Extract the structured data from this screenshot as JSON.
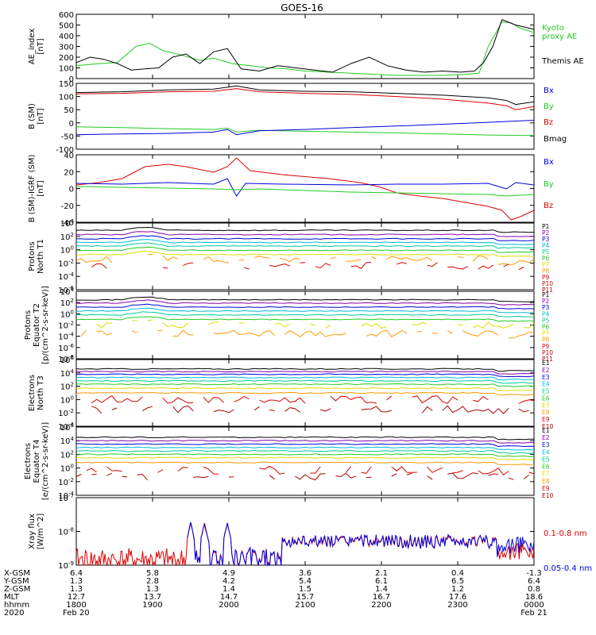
{
  "title": "GOES-16",
  "colors": {
    "black": "#000000",
    "red": "#dd0000",
    "green": "#22cc22",
    "blue": "#0000dd",
    "purple": "#8800aa",
    "cyan": "#00bbdd",
    "teal": "#00cc99",
    "yellow": "#dddd00",
    "orange": "#ff9900",
    "magenta": "#cc00cc",
    "navy": "#0000aa",
    "ltgreen": "#55dd55",
    "olive": "#aaaa00"
  },
  "chart_data": [
    {
      "type": "line",
      "id": "ae",
      "ylabel": [
        "AE_index",
        "[nT]"
      ],
      "ylim": [
        0,
        600
      ],
      "yticks": [
        "600",
        "500",
        "400",
        "300",
        "200",
        "100",
        "0"
      ],
      "legend": [
        {
          "text": "Kyoto",
          "color": "#22cc22"
        },
        {
          "text": "proxy AE",
          "color": "#22cc22"
        },
        {
          "text": "Themis AE",
          "color": "#000000"
        }
      ],
      "series": [
        {
          "name": "Kyoto proxy AE",
          "color": "#22cc22",
          "x": [
            0,
            0.05,
            0.09,
            0.13,
            0.16,
            0.19,
            0.23,
            0.27,
            0.3,
            0.34,
            0.38,
            0.42,
            0.46,
            0.5,
            0.55,
            0.6,
            0.65,
            0.7,
            0.75,
            0.8,
            0.85,
            0.88,
            0.9,
            0.93,
            0.95,
            0.97,
            1.0
          ],
          "y": [
            120,
            140,
            150,
            300,
            330,
            260,
            220,
            170,
            190,
            140,
            120,
            100,
            90,
            70,
            60,
            50,
            40,
            30,
            30,
            30,
            40,
            50,
            300,
            530,
            520,
            470,
            430
          ]
        },
        {
          "name": "Themis AE",
          "color": "#000000",
          "x": [
            0,
            0.03,
            0.06,
            0.09,
            0.12,
            0.15,
            0.18,
            0.21,
            0.24,
            0.27,
            0.3,
            0.33,
            0.36,
            0.4,
            0.44,
            0.48,
            0.52,
            0.56,
            0.6,
            0.64,
            0.68,
            0.72,
            0.76,
            0.8,
            0.84,
            0.87,
            0.89,
            0.91,
            0.93,
            0.96,
            1.0
          ],
          "y": [
            150,
            200,
            180,
            140,
            80,
            90,
            100,
            200,
            230,
            140,
            250,
            280,
            90,
            70,
            120,
            100,
            80,
            60,
            140,
            200,
            120,
            80,
            60,
            70,
            60,
            70,
            150,
            300,
            550,
            500,
            460
          ]
        }
      ]
    },
    {
      "type": "line",
      "id": "bsm",
      "ylabel": [
        "B (SM)",
        "[nT]"
      ],
      "ylim": [
        -100,
        150
      ],
      "yticks": [
        "150",
        "100",
        "50",
        "0",
        "-50",
        "-100"
      ],
      "legend": [
        {
          "text": "Bx",
          "color": "#0000dd"
        },
        {
          "text": "By",
          "color": "#22cc22"
        },
        {
          "text": "Bz",
          "color": "#dd0000"
        },
        {
          "text": "Bmag",
          "color": "#000000"
        }
      ],
      "series": [
        {
          "name": "Bmag",
          "color": "#000000",
          "x": [
            0,
            0.1,
            0.2,
            0.3,
            0.35,
            0.4,
            0.5,
            0.6,
            0.7,
            0.8,
            0.9,
            0.94,
            0.96,
            1.0
          ],
          "y": [
            115,
            118,
            125,
            128,
            140,
            125,
            120,
            118,
            112,
            105,
            95,
            85,
            70,
            80
          ]
        },
        {
          "name": "Bz",
          "color": "#dd0000",
          "x": [
            0,
            0.1,
            0.2,
            0.3,
            0.35,
            0.4,
            0.5,
            0.6,
            0.7,
            0.8,
            0.9,
            0.94,
            0.96,
            1.0
          ],
          "y": [
            110,
            112,
            118,
            120,
            130,
            118,
            112,
            108,
            100,
            90,
            75,
            65,
            50,
            62
          ]
        },
        {
          "name": "By",
          "color": "#22cc22",
          "x": [
            0,
            0.1,
            0.2,
            0.3,
            0.33,
            0.35,
            0.4,
            0.5,
            0.6,
            0.7,
            0.8,
            0.9,
            1.0
          ],
          "y": [
            -15,
            -18,
            -22,
            -25,
            -20,
            -35,
            -28,
            -32,
            -35,
            -38,
            -42,
            -46,
            -48
          ]
        },
        {
          "name": "Bx",
          "color": "#0000dd",
          "x": [
            0,
            0.1,
            0.2,
            0.3,
            0.33,
            0.35,
            0.4,
            0.5,
            0.6,
            0.7,
            0.8,
            0.9,
            1.0
          ],
          "y": [
            -45,
            -42,
            -40,
            -35,
            -25,
            -45,
            -30,
            -25,
            -18,
            -12,
            -5,
            2,
            10
          ]
        }
      ]
    },
    {
      "type": "line",
      "id": "bigrf",
      "ylabel": [
        "B (SM)-IGRF (SM)",
        "[nT]"
      ],
      "ylim": [
        -45,
        40
      ],
      "yticks": [
        "40",
        "20",
        "0",
        "-20",
        "-40"
      ],
      "legend": [
        {
          "text": "Bx",
          "color": "#0000dd"
        },
        {
          "text": "By",
          "color": "#22cc22"
        },
        {
          "text": "Bz",
          "color": "#dd0000"
        }
      ],
      "series": [
        {
          "name": "Bz",
          "color": "#dd0000",
          "x": [
            0,
            0.05,
            0.1,
            0.15,
            0.2,
            0.24,
            0.3,
            0.33,
            0.35,
            0.38,
            0.45,
            0.55,
            0.62,
            0.66,
            0.7,
            0.75,
            0.8,
            0.85,
            0.9,
            0.93,
            0.95,
            0.97,
            1.0
          ],
          "y": [
            2,
            5,
            10,
            25,
            28,
            25,
            18,
            25,
            36,
            20,
            15,
            10,
            5,
            0,
            -8,
            -12,
            -15,
            -20,
            -25,
            -30,
            -42,
            -38,
            -30
          ]
        },
        {
          "name": "Bx",
          "color": "#0000dd",
          "x": [
            0,
            0.1,
            0.2,
            0.3,
            0.33,
            0.35,
            0.37,
            0.45,
            0.6,
            0.7,
            0.8,
            0.9,
            0.94,
            0.96,
            1.0
          ],
          "y": [
            4,
            3,
            5,
            3,
            10,
            -12,
            4,
            3,
            2,
            3,
            3,
            4,
            -3,
            5,
            2
          ]
        },
        {
          "name": "By",
          "color": "#22cc22",
          "x": [
            0,
            0.1,
            0.2,
            0.3,
            0.35,
            0.4,
            0.5,
            0.6,
            0.7,
            0.8,
            0.9,
            0.94,
            1.0
          ],
          "y": [
            0,
            -1,
            -2,
            -3,
            -4,
            -3,
            -5,
            -7,
            -8,
            -9,
            -10,
            -12,
            -10
          ]
        }
      ]
    },
    {
      "type": "line",
      "id": "pnorth",
      "log": true,
      "ylabel": [
        "Protons",
        "North T1"
      ],
      "ylim": [
        -7,
        4
      ],
      "yticks": [
        "10^4",
        "10^2",
        "10^0",
        "10^-2",
        "10^-4",
        "10^-6"
      ],
      "legend_labels": [
        "P1",
        "P2",
        "P3",
        "P4",
        "P5",
        "P6",
        "P7",
        "P8",
        "P9",
        "P10",
        "P11"
      ],
      "legend_colors": [
        "#000000",
        "#8800aa",
        "#0000dd",
        "#00bbdd",
        "#00cc99",
        "#22cc22",
        "#dddd00",
        "#ff9900",
        "#dd0000",
        "#cc0000",
        "#aa0000"
      ],
      "levels": [
        2.8,
        2.1,
        1.4,
        0.8,
        0.2,
        -0.5,
        -1.2,
        -2.0,
        -3.0
      ]
    },
    {
      "type": "line",
      "id": "pequator",
      "log": true,
      "ylabel": [
        "Protons",
        "Equator T2",
        "[p/(cm^2-s-sr-keV)]"
      ],
      "ylim": [
        -8,
        4
      ],
      "yticks": [
        "10^4",
        "10^2",
        "10^0",
        "10^-2",
        "10^-4",
        "10^-6",
        "10^-8"
      ],
      "legend_labels": [
        "P1",
        "P2",
        "P3",
        "P4",
        "P5",
        "P6",
        "P7",
        "P8",
        "P9",
        "P10",
        "P11"
      ],
      "legend_colors": [
        "#000000",
        "#8800aa",
        "#0000dd",
        "#00bbdd",
        "#00cc99",
        "#22cc22",
        "#dddd00",
        "#ff9900",
        "#dd0000",
        "#cc0000",
        "#aa0000"
      ],
      "levels": [
        2.5,
        1.9,
        1.2,
        0.5,
        -0.2,
        -1.0,
        -2.0,
        -3.5
      ]
    },
    {
      "type": "line",
      "id": "enorth",
      "log": true,
      "ylabel": [
        "Electrons",
        "North T3"
      ],
      "ylim": [
        -4,
        6
      ],
      "yticks": [
        "10^6",
        "10^4",
        "10^2",
        "10^0",
        "10^-2",
        "10^-4"
      ],
      "legend_labels": [
        "E1",
        "E2",
        "E3",
        "E4",
        "E5",
        "E6",
        "E7",
        "E8",
        "E9",
        "E10"
      ],
      "legend_colors": [
        "#000000",
        "#8800aa",
        "#0000dd",
        "#00bbdd",
        "#00cc99",
        "#22cc22",
        "#dddd00",
        "#ff9900",
        "#dd0000",
        "#aa0000"
      ],
      "levels": [
        4.6,
        4.2,
        3.8,
        3.3,
        2.8,
        2.3,
        1.7,
        1.0,
        0.0,
        -1.5
      ]
    },
    {
      "type": "line",
      "id": "eequator",
      "log": true,
      "ylabel": [
        "Electrons",
        "Equator T4",
        "[e/(cm^2-s-sr-keV)]"
      ],
      "ylim": [
        -4,
        6
      ],
      "yticks": [
        "10^6",
        "10^4",
        "10^2",
        "10^0",
        "10^-2",
        "10^-4"
      ],
      "legend_labels": [
        "E1",
        "E2",
        "E3",
        "E4",
        "E5",
        "E6",
        "E7",
        "E8",
        "E9",
        "E10"
      ],
      "legend_colors": [
        "#000000",
        "#8800aa",
        "#0000dd",
        "#00bbdd",
        "#00cc99",
        "#22cc22",
        "#dddd00",
        "#ff9900",
        "#dd0000",
        "#aa0000"
      ],
      "levels": [
        4.5,
        4.0,
        3.5,
        3.0,
        2.5,
        2.0,
        1.5,
        0.8,
        -0.3,
        -1.2
      ]
    },
    {
      "type": "line",
      "id": "xray",
      "log": true,
      "ylabel": [
        "Xray flux",
        "[W/m^2]"
      ],
      "ylim": [
        -9,
        -7
      ],
      "yticks": [
        "10^-7",
        "10^-8",
        "10^-9"
      ],
      "legend": [
        {
          "text": "0.1-0.8 nm",
          "color": "#dd0000"
        },
        {
          "text": "0.05-0.4 nm",
          "color": "#0000dd"
        }
      ]
    }
  ],
  "x_axis": {
    "row_labels": [
      "X-GSM",
      "Y-GSM",
      "Z-GSM",
      "MLT",
      "hhmm",
      "2020"
    ],
    "columns": [
      {
        "vals": [
          "6.4",
          "1.3",
          "1.3",
          "12.7",
          "1800",
          "Feb 20"
        ]
      },
      {
        "vals": [
          "5.8",
          "2.8",
          "1.3",
          "13.7",
          "1900",
          ""
        ]
      },
      {
        "vals": [
          "4.9",
          "4.2",
          "1.4",
          "14.7",
          "2000",
          ""
        ]
      },
      {
        "vals": [
          "3.6",
          "5.4",
          "1.5",
          "15.7",
          "2100",
          ""
        ]
      },
      {
        "vals": [
          "2.1",
          "6.1",
          "1.4",
          "16.7",
          "2200",
          ""
        ]
      },
      {
        "vals": [
          "0.4",
          "6.5",
          "1.2",
          "17.6",
          "2300",
          ""
        ]
      },
      {
        "vals": [
          "-1.3",
          "6.4",
          "0.8",
          "18.6",
          "0000",
          "Feb 21"
        ]
      }
    ]
  }
}
